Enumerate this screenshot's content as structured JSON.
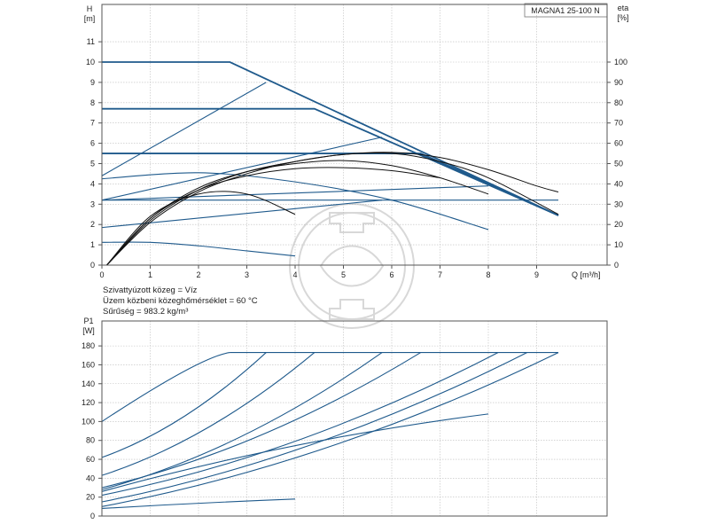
{
  "title": "MAGNA1 25-100 N",
  "info_lines": [
    "Szivattyúzott közeg = Víz",
    "Üzem közbeni közeghőmérséklet = 60 °C",
    "Sűrűség = 983.2 kg/m³"
  ],
  "colors": {
    "curve": "#1f5a8c",
    "efficiency": "#111111",
    "axis": "#555555"
  },
  "chart_data": [
    {
      "type": "line",
      "title": "MAGNA1 25-100 N",
      "xlabel": "Q [m³/h]",
      "ylabel": "H [m]",
      "y2label": "eta [%]",
      "xlim": [
        0,
        10
      ],
      "ylim": [
        0,
        12
      ],
      "y2lim": [
        0,
        120
      ],
      "x_ticks": [
        0,
        1,
        2,
        3,
        4,
        5,
        6,
        7,
        8,
        9
      ],
      "y_ticks": [
        0,
        1,
        2,
        3,
        4,
        5,
        6,
        7,
        8,
        9,
        10,
        11
      ],
      "y2_ticks": [
        0,
        10,
        20,
        30,
        40,
        50,
        60,
        70,
        80,
        90,
        100
      ],
      "grid": true,
      "series": [
        {
          "x": [
            0,
            2.65,
            9.45
          ],
          "y": [
            10,
            10,
            2.45
          ]
        },
        {
          "x": [
            0,
            4.4,
            9.45
          ],
          "y": [
            7.7,
            7.7,
            2.45
          ]
        },
        {
          "x": [
            0,
            6.6,
            9.45
          ],
          "y": [
            5.5,
            5.5,
            2.45
          ]
        },
        {
          "x": [
            0,
            3.4
          ],
          "y": [
            4.4,
            9
          ]
        },
        {
          "x": [
            0,
            5.8
          ],
          "y": [
            3.2,
            6.3
          ]
        },
        {
          "x": [
            0,
            5.8
          ],
          "y": [
            1.85,
            3.2
          ]
        },
        {
          "x": [
            0,
            8.0
          ],
          "y": [
            3.2,
            3.9
          ]
        },
        {
          "x": [
            0,
            2.0,
            4.0,
            6.0,
            8.0
          ],
          "y": [
            4.25,
            4.55,
            4.1,
            3.2,
            1.75
          ]
        },
        {
          "x": [
            0,
            1.0,
            2.0,
            3.0,
            4.0
          ],
          "y": [
            1.12,
            1.12,
            0.95,
            0.7,
            0.45
          ]
        },
        {
          "x": [
            0,
            9.45
          ],
          "y": [
            3.2,
            3.2
          ]
        },
        {
          "x": [
            0.1,
            1,
            2,
            3,
            4,
            5,
            6,
            7,
            8,
            9,
            9.45
          ],
          "y": [
            0,
            21,
            36,
            45,
            51,
            54.5,
            55.5,
            53,
            47,
            39,
            36
          ]
        },
        {
          "x": [
            0.1,
            1,
            2,
            3,
            4,
            5,
            6,
            7,
            8,
            9.45
          ],
          "y": [
            0,
            22,
            37,
            46,
            51,
            54.5,
            55,
            51,
            43,
            25
          ]
        },
        {
          "x": [
            0.1,
            1,
            2,
            3,
            4,
            5,
            6,
            7,
            8
          ],
          "y": [
            0,
            23,
            38,
            46,
            50,
            51.5,
            49,
            43,
            35
          ]
        },
        {
          "x": [
            0.1,
            1,
            2,
            3,
            4,
            5,
            6,
            7
          ],
          "y": [
            0,
            23,
            37,
            44,
            47.5,
            48,
            46.5,
            43
          ]
        },
        {
          "x": [
            0.1,
            1,
            2,
            3,
            4
          ],
          "y": [
            0,
            24,
            35,
            35,
            25
          ]
        }
      ]
    },
    {
      "type": "line",
      "xlabel": "",
      "ylabel": "P1 [W]",
      "xlim": [
        0,
        10
      ],
      "ylim": [
        0,
        190
      ],
      "y_ticks": [
        0,
        20,
        40,
        60,
        80,
        100,
        120,
        140,
        160,
        180
      ],
      "grid": true,
      "series": [
        {
          "x": [
            0,
            2.05,
            2.65
          ],
          "y": [
            100,
            169,
            173
          ]
        },
        {
          "x": [
            0,
            3.4
          ],
          "y": [
            62,
            173
          ]
        },
        {
          "x": [
            0,
            4.4
          ],
          "y": [
            43,
            173
          ]
        },
        {
          "x": [
            0,
            5.8
          ],
          "y": [
            28,
            173
          ]
        },
        {
          "x": [
            0,
            6.6
          ],
          "y": [
            30,
            173
          ]
        },
        {
          "x": [
            0,
            8.2
          ],
          "y": [
            22,
            173
          ]
        },
        {
          "x": [
            0,
            8.8
          ],
          "y": [
            15,
            173
          ]
        },
        {
          "x": [
            0,
            9.45
          ],
          "y": [
            10,
            173
          ]
        },
        {
          "x": [
            0,
            4.0,
            8.0
          ],
          "y": [
            26,
            82,
            108
          ]
        },
        {
          "x": [
            0,
            2.0,
            4.0
          ],
          "y": [
            8,
            14,
            18
          ]
        },
        {
          "x": [
            2.65,
            9.45
          ],
          "y": [
            173,
            173
          ]
        }
      ]
    }
  ]
}
